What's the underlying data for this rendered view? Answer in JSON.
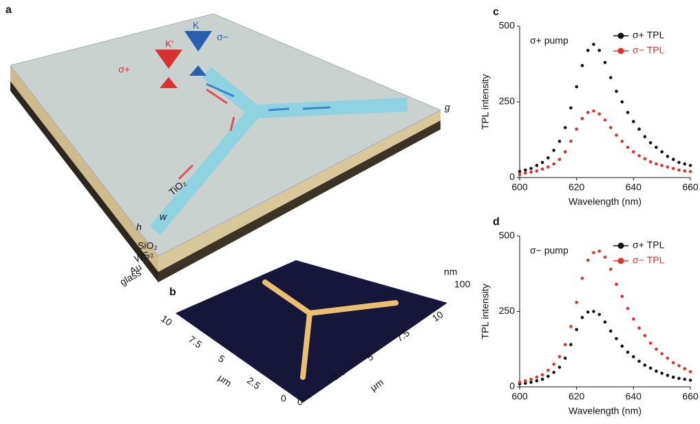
{
  "panel_a": {
    "label": "a",
    "labels": {
      "k_prime": "K′",
      "k": "K",
      "sigma_minus": "σ−",
      "sigma_plus": "σ+",
      "g": "g",
      "tio2": "TiO₂",
      "w": "w",
      "h": "h",
      "sio2": "SiO₂",
      "ws2": "WS₂",
      "au": "Au",
      "glass": "glass"
    }
  },
  "panel_b": {
    "label": "b",
    "height_unit": "nm",
    "colorbar_tick": 100,
    "xy_unit": "μm",
    "left_axis_ticks": [
      10,
      7.5,
      5,
      2.5,
      0
    ],
    "right_axis_ticks": [
      0,
      2.5,
      5,
      7.5,
      10
    ]
  },
  "chart_data": [
    {
      "type": "scatter",
      "panel_label": "c",
      "annotation": "σ+ pump",
      "x_label": "Wavelength (nm)",
      "y_label": "TPL intensity",
      "xlim": [
        600,
        660
      ],
      "xticks": [
        600,
        620,
        640,
        660
      ],
      "ylim": [
        0,
        500
      ],
      "yticks": [
        0,
        250,
        500
      ],
      "legend": "upper right",
      "x": [
        600,
        602,
        604,
        606,
        608,
        610,
        612,
        614,
        616,
        618,
        620,
        622,
        624,
        626,
        628,
        630,
        632,
        634,
        636,
        638,
        640,
        642,
        644,
        646,
        648,
        650,
        652,
        654,
        656,
        658,
        660
      ],
      "series": [
        {
          "name": "σ+ TPL",
          "color": "#111111",
          "values": [
            20,
            25,
            30,
            40,
            50,
            65,
            90,
            120,
            165,
            230,
            300,
            370,
            420,
            440,
            420,
            380,
            330,
            285,
            250,
            215,
            185,
            160,
            135,
            115,
            100,
            85,
            70,
            60,
            50,
            45,
            40
          ]
        },
        {
          "name": "σ− TPL",
          "color": "#e0302a",
          "values": [
            10,
            15,
            18,
            22,
            28,
            35,
            45,
            60,
            85,
            120,
            160,
            195,
            215,
            220,
            210,
            190,
            165,
            140,
            120,
            100,
            85,
            72,
            62,
            52,
            45,
            40,
            35,
            30,
            25,
            22,
            20
          ]
        }
      ]
    },
    {
      "type": "scatter",
      "panel_label": "d",
      "annotation": "σ− pump",
      "x_label": "Wavelength (nm)",
      "y_label": "TPL intensity",
      "xlim": [
        600,
        660
      ],
      "xticks": [
        600,
        620,
        640,
        660
      ],
      "ylim": [
        0,
        500
      ],
      "yticks": [
        0,
        250,
        500
      ],
      "legend": "upper right",
      "x": [
        600,
        602,
        604,
        606,
        608,
        610,
        612,
        614,
        616,
        618,
        620,
        622,
        624,
        626,
        628,
        630,
        632,
        634,
        636,
        638,
        640,
        642,
        644,
        646,
        648,
        650,
        652,
        654,
        656,
        658,
        660
      ],
      "series": [
        {
          "name": "σ+ TPL",
          "color": "#111111",
          "values": [
            10,
            12,
            15,
            20,
            25,
            35,
            48,
            65,
            95,
            140,
            190,
            230,
            248,
            250,
            240,
            215,
            185,
            160,
            135,
            115,
            100,
            85,
            72,
            62,
            52,
            45,
            38,
            32,
            28,
            25,
            22
          ]
        },
        {
          "name": "σ− TPL",
          "color": "#e0302a",
          "values": [
            15,
            20,
            25,
            32,
            40,
            55,
            75,
            100,
            140,
            200,
            280,
            360,
            420,
            445,
            450,
            430,
            390,
            340,
            300,
            260,
            225,
            195,
            170,
            145,
            125,
            110,
            95,
            80,
            70,
            60,
            50
          ]
        }
      ]
    }
  ]
}
